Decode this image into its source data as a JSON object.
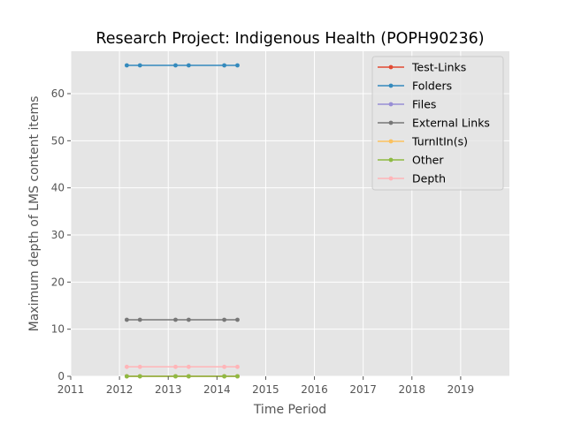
{
  "chart_data": {
    "type": "line",
    "title": "Research Project: Indigenous Health (POPH90236)",
    "xlabel": "Time Period",
    "ylabel": "Maximum depth of LMS content items",
    "xlim": [
      2011,
      2020
    ],
    "ylim": [
      0,
      69
    ],
    "x_ticks": [
      "2011",
      "2012",
      "2013",
      "2014",
      "2015",
      "2016",
      "2017",
      "2018",
      "2019"
    ],
    "y_ticks": [
      "0",
      "10",
      "20",
      "30",
      "40",
      "50",
      "60"
    ],
    "x": [
      2012.15,
      2012.42,
      2013.15,
      2013.42,
      2014.15,
      2014.42
    ],
    "series": [
      {
        "name": "Test-Links",
        "color": "#E24A33",
        "values": [
          0,
          0,
          0,
          0,
          0,
          0
        ]
      },
      {
        "name": "Folders",
        "color": "#348ABD",
        "values": [
          66,
          66,
          66,
          66,
          66,
          66
        ]
      },
      {
        "name": "Files",
        "color": "#988ED5",
        "values": [
          0,
          0,
          0,
          0,
          0,
          0
        ]
      },
      {
        "name": "External Links",
        "color": "#777777",
        "values": [
          12,
          12,
          12,
          12,
          12,
          12
        ]
      },
      {
        "name": "TurnItIn(s)",
        "color": "#FBC15E",
        "values": [
          0,
          0,
          0,
          0,
          0,
          0
        ]
      },
      {
        "name": "Other",
        "color": "#8EBA42",
        "values": [
          0,
          0,
          0,
          0,
          0,
          0
        ]
      },
      {
        "name": "Depth",
        "color": "#FFB5B8",
        "values": [
          2,
          2,
          2,
          2,
          2,
          2
        ]
      }
    ],
    "grid": true,
    "legend_position": "top-right"
  }
}
